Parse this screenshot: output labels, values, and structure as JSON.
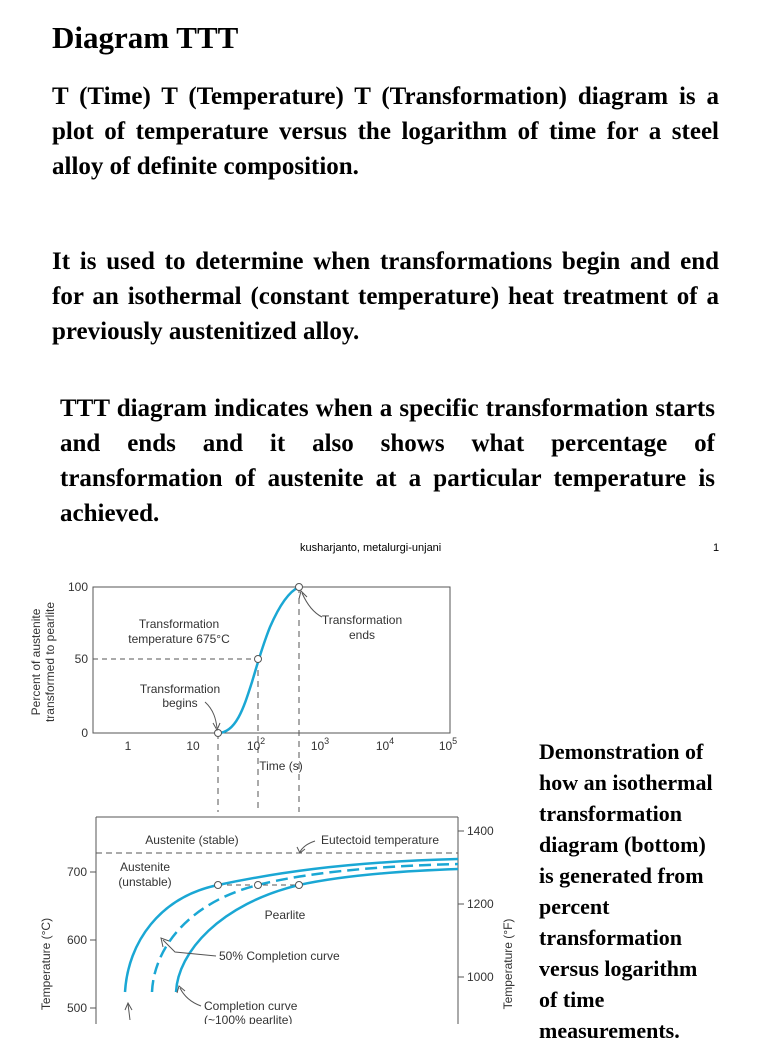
{
  "title": "Diagram TTT",
  "paragraphs": [
    "T (Time) T (Temperature) T (Transformation) diagram is a plot of temperature versus the logarithm of time for a steel alloy of definite composition.",
    "It is used to determine when transformations begin and end for an isothermal (constant temperature) heat treatment of a previously austenitized alloy.",
    "TTT diagram indicates when a specific transformation starts and ends and it also shows what percentage of transformation of austenite at a particular temperature is achieved."
  ],
  "footer": {
    "author": "kusharjanto, metalurgi-unjani",
    "page": "1"
  },
  "figure": {
    "top": {
      "ylabel_line1": "Percent of austenite",
      "ylabel_line2": "transformed to pearlite",
      "xlabel": "Time (s)",
      "y_ticks": [
        "0",
        "50",
        "100"
      ],
      "x_ticks": [
        "1",
        "10",
        "10",
        "10",
        "10",
        "10"
      ],
      "x_tick_exponents": [
        "",
        "",
        "2",
        "3",
        "4",
        "5"
      ],
      "annotation_temp_line1": "Transformation",
      "annotation_temp_line2": "temperature 675°C",
      "annotation_begins_line1": "Transformation",
      "annotation_begins_line2": "begins",
      "annotation_ends_line1": "Transformation",
      "annotation_ends_line2": "ends"
    },
    "bottom": {
      "ylabel_left": "Temperature (°C)",
      "ylabel_right": "Temperature (°F)",
      "left_ticks": [
        "700",
        "600",
        "500"
      ],
      "right_ticks": [
        "1400",
        "1200",
        "1000"
      ],
      "label_austenite_stable": "Austenite (stable)",
      "label_eutectoid": "Eutectoid temperature",
      "label_austenite_unstable_1": "Austenite",
      "label_austenite_unstable_2": "(unstable)",
      "label_pearlite": "Pearlite",
      "label_50_curve": "50% Completion curve",
      "label_completion_1": "Completion curve",
      "label_completion_2": "(~100% pearlite)"
    },
    "curve_color": "#1aa7d4"
  },
  "caption_lines": [
    "Demonstration of",
    "how an isothermal",
    "transformation",
    "diagram (bottom)",
    "is generated from",
    "percent",
    "transformation",
    "versus logarithm",
    "of time",
    "measurements."
  ]
}
